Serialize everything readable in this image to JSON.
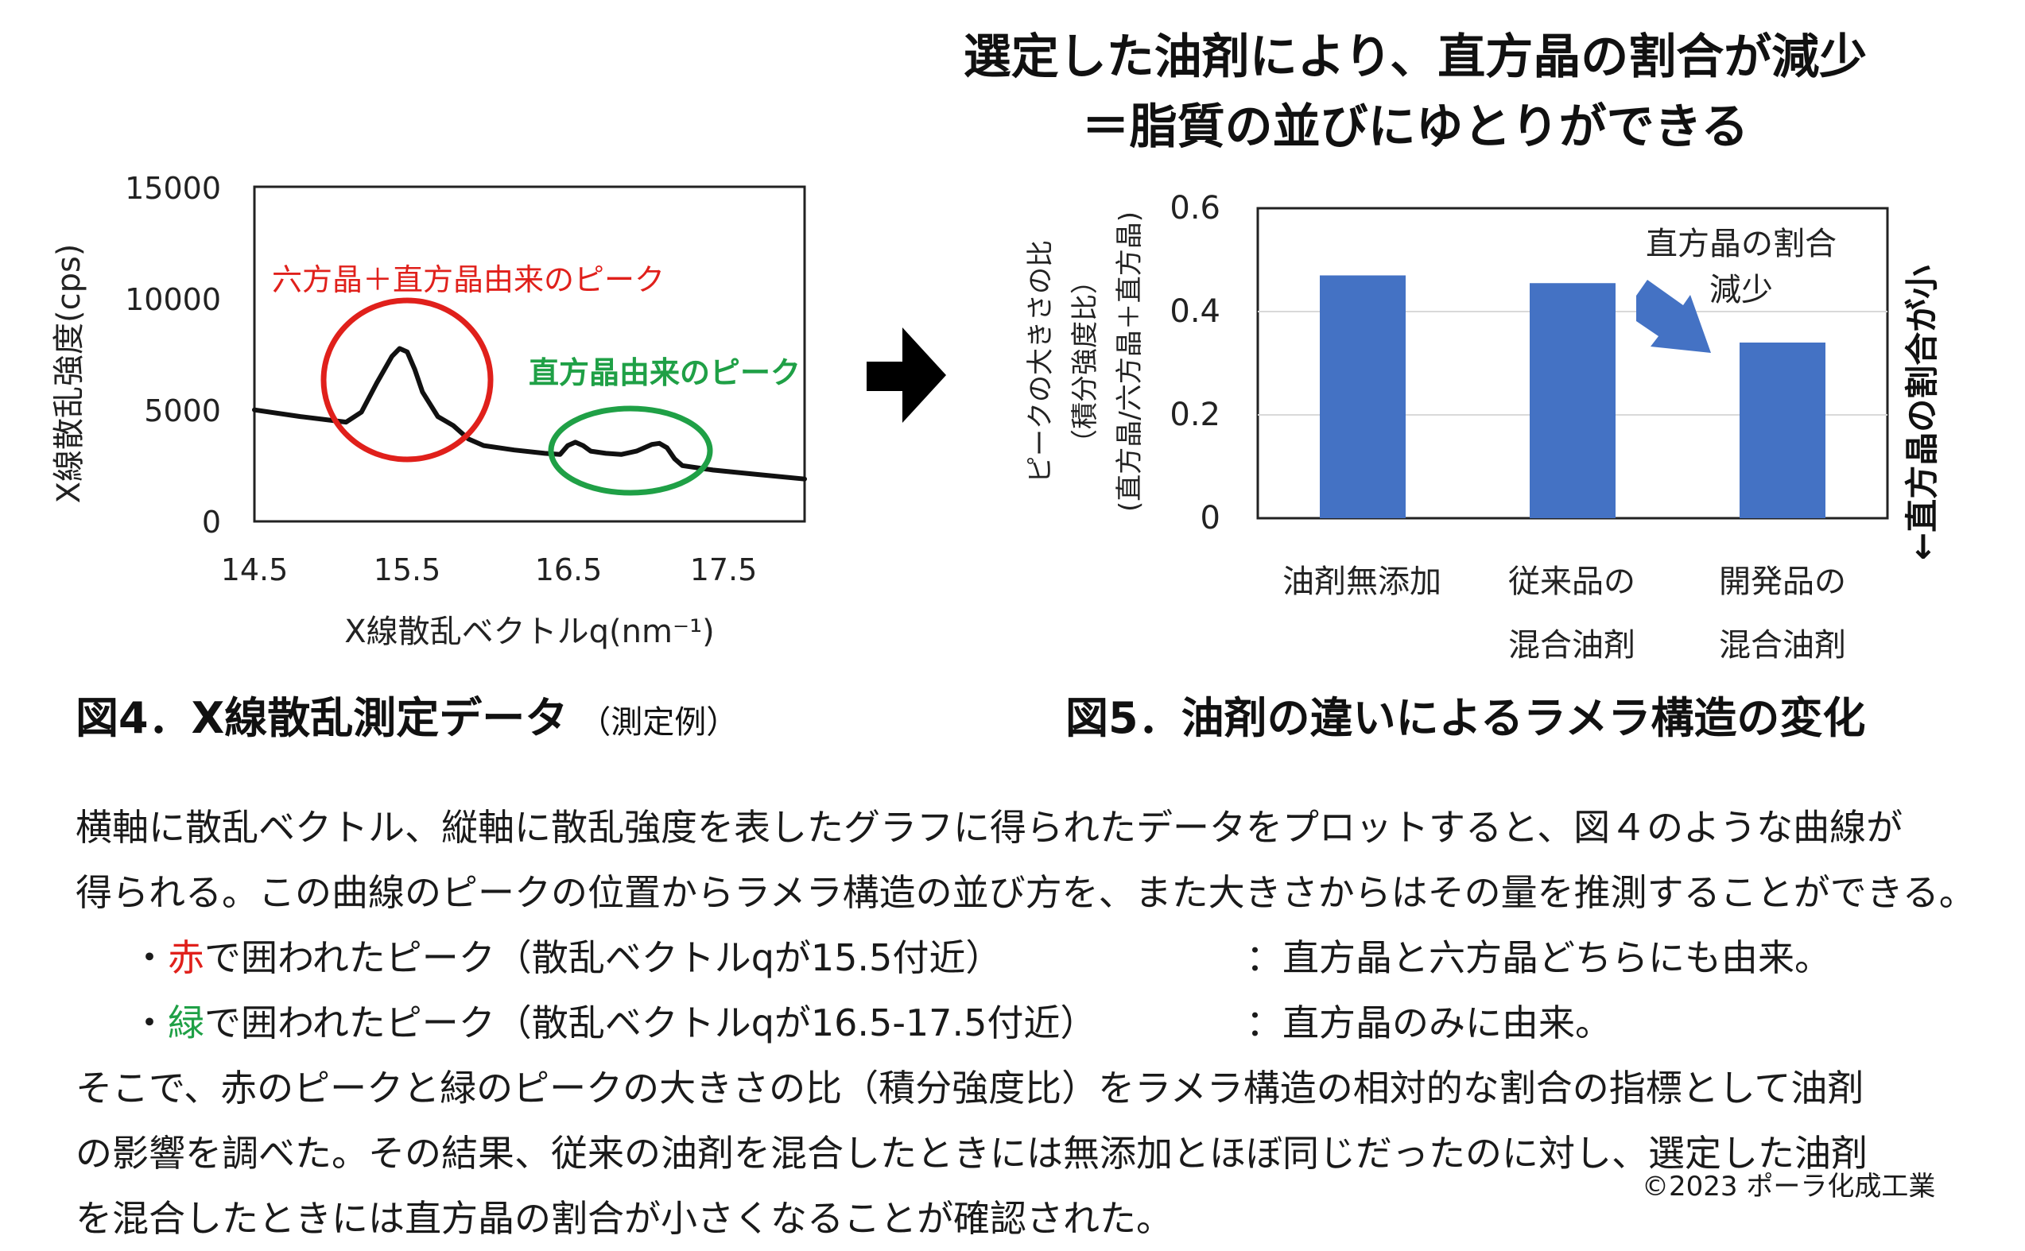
{
  "headline": {
    "line1": "選定した油剤により、直方晶の割合が減少",
    "line2": "＝脂質の並びにゆとりができる"
  },
  "chart_data": [
    {
      "type": "line",
      "xlabel": "X線散乱ベクトルq(nm⁻¹)",
      "ylabel": "X線散乱強度(cps)",
      "xlim": [
        14.5,
        18.1
      ],
      "ylim": [
        0,
        15000
      ],
      "xticks": [
        "14.5",
        "15.5",
        "16.5",
        "17.5"
      ],
      "yticks": [
        "0",
        "5000",
        "10000",
        "15000"
      ],
      "grid": false,
      "series": [
        {
          "x": [
            14.5,
            14.8,
            15.1,
            15.2,
            15.3,
            15.4,
            15.45,
            15.5,
            15.55,
            15.6,
            15.7,
            15.75,
            15.8,
            15.9,
            16.0,
            16.2,
            16.4,
            16.5,
            16.55,
            16.6,
            16.65,
            16.7,
            16.8,
            16.9,
            17.0,
            17.1,
            17.15,
            17.2,
            17.25,
            17.3,
            17.5,
            17.8,
            18.1
          ],
          "y": [
            5000,
            4700,
            4450,
            4900,
            6200,
            7400,
            7750,
            7600,
            6800,
            5800,
            4700,
            4500,
            4300,
            3700,
            3400,
            3200,
            3050,
            3000,
            3400,
            3550,
            3400,
            3150,
            3050,
            3000,
            3150,
            3450,
            3500,
            3300,
            2800,
            2500,
            2300,
            2100,
            1900
          ]
        }
      ],
      "annotations": [
        {
          "text": "六方晶＋直方晶由来のピーク",
          "color": "#e0201b"
        },
        {
          "text": "直方晶由来のピーク",
          "color": "#1fa046"
        }
      ]
    },
    {
      "type": "bar",
      "categories": [
        [
          "油剤無添加"
        ],
        [
          "従来品の",
          "混合油剤"
        ],
        [
          "開発品の",
          "混合油剤"
        ]
      ],
      "values": [
        0.47,
        0.455,
        0.34
      ],
      "ylim": [
        0,
        0.6
      ],
      "yticks": [
        "0",
        "0.2",
        "0.4",
        "0.6"
      ],
      "ylabel_lines": [
        "ピークの大きさの比",
        "（積分強度比）",
        "(直方晶/六方晶＋直方晶)"
      ],
      "bar_color": "#4472c4",
      "grid": true,
      "annotation": [
        "直方晶の割合",
        "減少"
      ],
      "side_label": "←直方晶の割合が小"
    }
  ],
  "captions": {
    "fig4_main": "図4．X線散乱測定データ",
    "fig4_sub": "（測定例）",
    "fig5_main": "図5．油剤の違いによるラメラ構造の変化"
  },
  "paragraph": {
    "line1": "横軸に散乱ベクトル、縦軸に散乱強度を表したグラフに得られたデータをプロットすると、図４のような曲線が",
    "line2": "得られる。この曲線のピークの位置からラメラ構造の並び方を、また大きさからはその量を推測することができる。",
    "bullet1_prefix": "・",
    "bullet1_color_word": "赤",
    "bullet1_text": "で囲われたピーク（散乱ベクトルqが15.5付近）",
    "bullet1_desc": "：直方晶と六方晶どちらにも由来。",
    "bullet2_prefix": "・",
    "bullet2_color_word": "緑",
    "bullet2_text": "で囲われたピーク（散乱ベクトルqが16.5-17.5付近）",
    "bullet2_desc": "：直方晶のみに由来。",
    "line3": "そこで、赤のピークと緑のピークの大きさの比（積分強度比）をラメラ構造の相対的な割合の指標として油剤",
    "line4": "の影響を調べた。その結果、従来の油剤を混合したときには無添加とほぼ同じだったのに対し、選定した油剤",
    "line5": "を混合したときには直方晶の割合が小さくなることが確認された。"
  },
  "copyright": "©2023 ポーラ化成工業"
}
